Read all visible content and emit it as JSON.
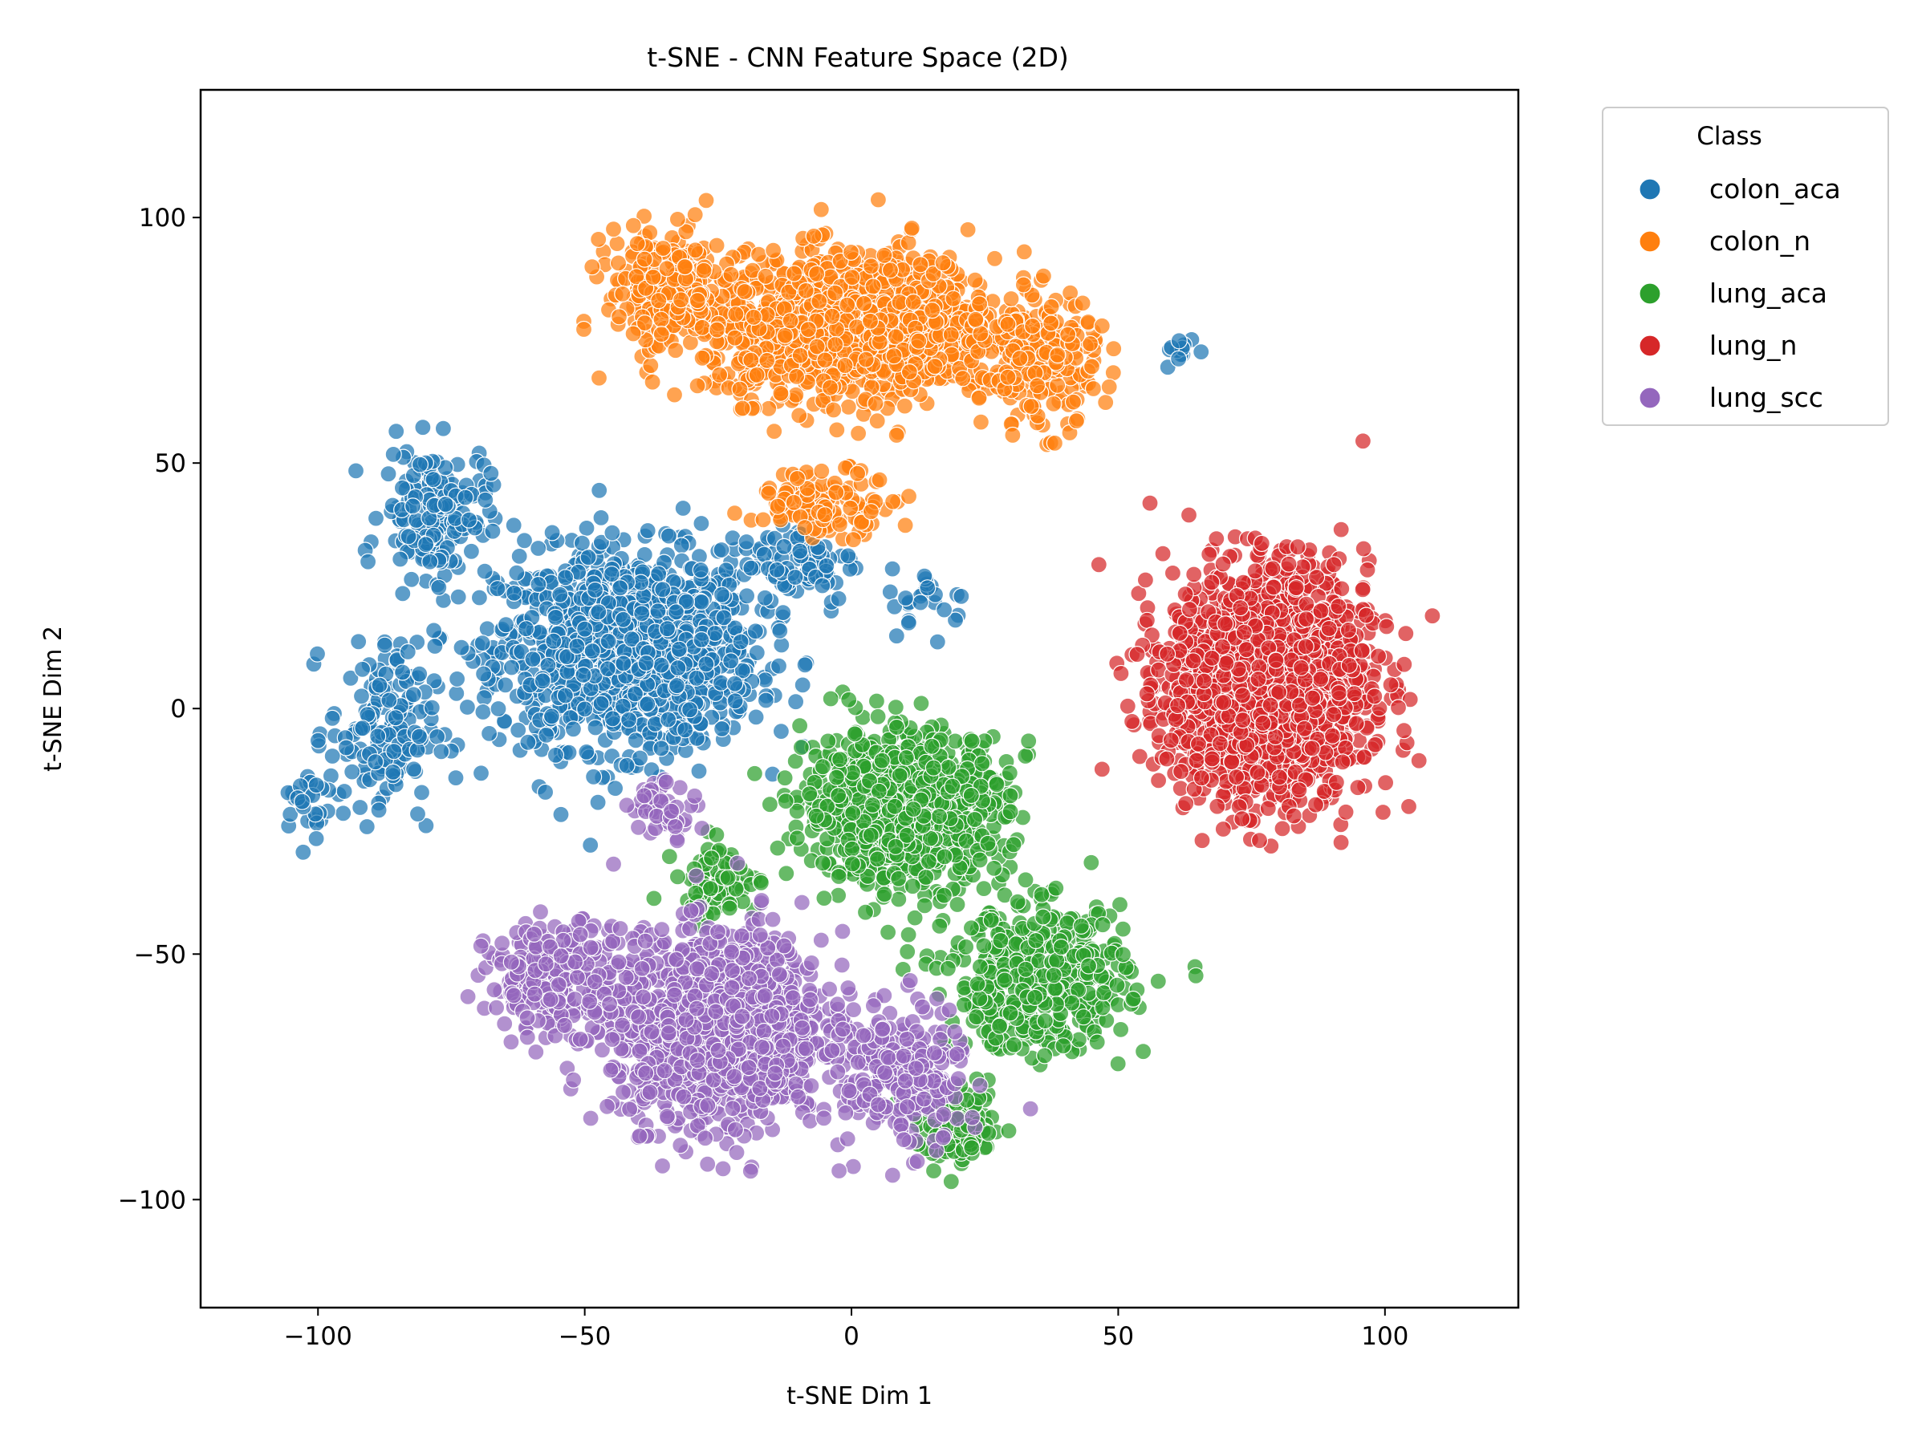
{
  "chart_data": {
    "type": "scatter",
    "title": "t-SNE - CNN Feature Space (2D)",
    "xlabel": "t-SNE Dim 1",
    "ylabel": "t-SNE Dim 2",
    "xlim": [
      -122,
      125
    ],
    "ylim": [
      -122,
      126
    ],
    "xticks": [
      -100,
      -50,
      0,
      50,
      100
    ],
    "yticks": [
      -100,
      -50,
      0,
      50,
      100
    ],
    "xtick_labels": [
      "−100",
      "−50",
      "0",
      "50",
      "100"
    ],
    "ytick_labels": [
      "−100",
      "−50",
      "0",
      "50",
      "100"
    ],
    "grid": false,
    "legend": {
      "title": "Class",
      "placement": "outside-upper-right"
    },
    "series": [
      {
        "name": "colon_aca",
        "color": "#1f77b4",
        "clusters": [
          {
            "center": [
              -42,
              12
            ],
            "spread": [
              22,
              18
            ],
            "count": 1300
          },
          {
            "center": [
              -78,
              40
            ],
            "spread": [
              9,
              12
            ],
            "count": 180
          },
          {
            "center": [
              -88,
              -5
            ],
            "spread": [
              9,
              16
            ],
            "count": 160
          },
          {
            "center": [
              -102,
              -20
            ],
            "spread": [
              4,
              7
            ],
            "count": 25
          },
          {
            "center": [
              -10,
              30
            ],
            "spread": [
              10,
              8
            ],
            "count": 80
          },
          {
            "center": [
              15,
              22
            ],
            "spread": [
              7,
              6
            ],
            "count": 25
          },
          {
            "center": [
              62,
              73
            ],
            "spread": [
              3,
              3
            ],
            "count": 12
          }
        ]
      },
      {
        "name": "colon_n",
        "color": "#ff7f0e",
        "clusters": [
          {
            "center": [
              0,
              78
            ],
            "spread": [
              25,
              13
            ],
            "count": 1400
          },
          {
            "center": [
              -35,
              85
            ],
            "spread": [
              10,
              12
            ],
            "count": 200
          },
          {
            "center": [
              35,
              70
            ],
            "spread": [
              10,
              12
            ],
            "count": 200
          },
          {
            "center": [
              -5,
              42
            ],
            "spread": [
              12,
              6
            ],
            "count": 120
          }
        ]
      },
      {
        "name": "lung_aca",
        "color": "#2ca02c",
        "clusters": [
          {
            "center": [
              10,
              -20
            ],
            "spread": [
              17,
              14
            ],
            "count": 900
          },
          {
            "center": [
              35,
              -55
            ],
            "spread": [
              15,
              13
            ],
            "count": 500
          },
          {
            "center": [
              20,
              -85
            ],
            "spread": [
              7,
              7
            ],
            "count": 120
          },
          {
            "center": [
              -25,
              -35
            ],
            "spread": [
              7,
              7
            ],
            "count": 80
          }
        ]
      },
      {
        "name": "lung_n",
        "color": "#d62728",
        "clusters": [
          {
            "center": [
              78,
              5
            ],
            "spread": [
              17,
              21
            ],
            "count": 1800
          }
        ]
      },
      {
        "name": "lung_scc",
        "color": "#9467bd",
        "clusters": [
          {
            "center": [
              -25,
              -65
            ],
            "spread": [
              18,
              17
            ],
            "count": 1400
          },
          {
            "center": [
              10,
              -75
            ],
            "spread": [
              10,
              13
            ],
            "count": 250
          },
          {
            "center": [
              -55,
              -55
            ],
            "spread": [
              12,
              10
            ],
            "count": 250
          },
          {
            "center": [
              -35,
              -20
            ],
            "spread": [
              6,
              5
            ],
            "count": 50
          }
        ]
      }
    ]
  }
}
